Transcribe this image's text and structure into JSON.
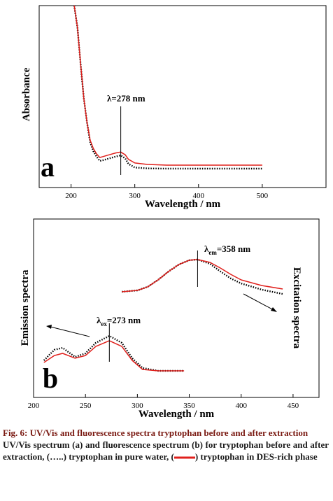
{
  "chart_data": [
    {
      "type": "line",
      "ylabel": "Absorbance",
      "xlabel": "Wavelength / nm",
      "panel_label": "a",
      "xlim": [
        150,
        600
      ],
      "xticks": [
        200,
        300,
        400,
        500
      ],
      "ylim": [
        0,
        1
      ],
      "x": [
        205,
        210,
        215,
        220,
        225,
        230,
        235,
        240,
        245,
        250,
        260,
        270,
        278,
        285,
        290,
        300,
        320,
        350,
        400,
        450,
        500
      ],
      "series": [
        {
          "color": "#000000",
          "linestyle": "dotted",
          "values": [
            1.0,
            0.88,
            0.68,
            0.49,
            0.36,
            0.25,
            0.2,
            0.17,
            0.146,
            0.15,
            0.16,
            0.17,
            0.177,
            0.16,
            0.13,
            0.11,
            0.105,
            0.104,
            0.104,
            0.104,
            0.104
          ]
        },
        {
          "color": "#e0201c",
          "linestyle": "solid",
          "values": [
            1.0,
            0.88,
            0.68,
            0.49,
            0.36,
            0.26,
            0.215,
            0.185,
            0.165,
            0.17,
            0.18,
            0.19,
            0.195,
            0.18,
            0.155,
            0.135,
            0.127,
            0.123,
            0.123,
            0.123,
            0.123
          ]
        }
      ],
      "annotations": [
        {
          "text": "λ=278 nm",
          "x": 278
        }
      ]
    },
    {
      "type": "line",
      "ylabel": "Emission spectra",
      "y2label": "Excitation spectra",
      "xlabel": "Wavelength / nm",
      "panel_label": "b",
      "xlim": [
        200,
        475
      ],
      "xticks": [
        200,
        250,
        300,
        350,
        400,
        450
      ],
      "ylim": [
        0,
        1
      ],
      "series": [
        {
          "color": "#000000",
          "linestyle": "dotted",
          "x": [
            210,
            220,
            228,
            240,
            250,
            260,
            273,
            285,
            295,
            305,
            320,
            345
          ],
          "values": [
            0.208,
            0.267,
            0.278,
            0.227,
            0.247,
            0.306,
            0.345,
            0.306,
            0.22,
            0.165,
            0.149,
            0.149
          ]
        },
        {
          "color": "#e0201c",
          "linestyle": "solid",
          "x": [
            210,
            220,
            228,
            240,
            250,
            260,
            273,
            285,
            295,
            305,
            320,
            345
          ],
          "values": [
            0.196,
            0.235,
            0.247,
            0.22,
            0.235,
            0.286,
            0.318,
            0.286,
            0.208,
            0.157,
            0.149,
            0.149
          ]
        },
        {
          "color": "#000000",
          "linestyle": "dotted",
          "x": [
            285,
            300,
            310,
            320,
            330,
            340,
            350,
            358,
            370,
            380,
            390,
            400,
            420,
            440
          ],
          "values": [
            0.592,
            0.6,
            0.62,
            0.659,
            0.706,
            0.745,
            0.769,
            0.773,
            0.749,
            0.706,
            0.667,
            0.639,
            0.604,
            0.58
          ]
        },
        {
          "color": "#e0201c",
          "linestyle": "solid",
          "x": [
            285,
            300,
            310,
            320,
            330,
            340,
            350,
            358,
            370,
            380,
            390,
            400,
            420,
            440
          ],
          "values": [
            0.592,
            0.6,
            0.62,
            0.659,
            0.706,
            0.745,
            0.769,
            0.773,
            0.757,
            0.725,
            0.69,
            0.659,
            0.627,
            0.608
          ]
        }
      ],
      "annotations": [
        {
          "text": "λ",
          "sub": "em",
          "rest": "=358 nm",
          "x": 358
        },
        {
          "text": "λ",
          "sub": "ex",
          "rest": "=273 nm",
          "x": 273
        }
      ]
    }
  ],
  "caption": {
    "title": "Fig. 6: UV/Vis and fluorescence spectra tryptophan before and after extraction",
    "body": [
      "UV/Vis spectrum (a) and fluorescence spectrum (b) for tryptophan before and after extraction, (…..) tryptophan in pure water, (",
      ") tryptophan in DES-rich phase"
    ]
  }
}
